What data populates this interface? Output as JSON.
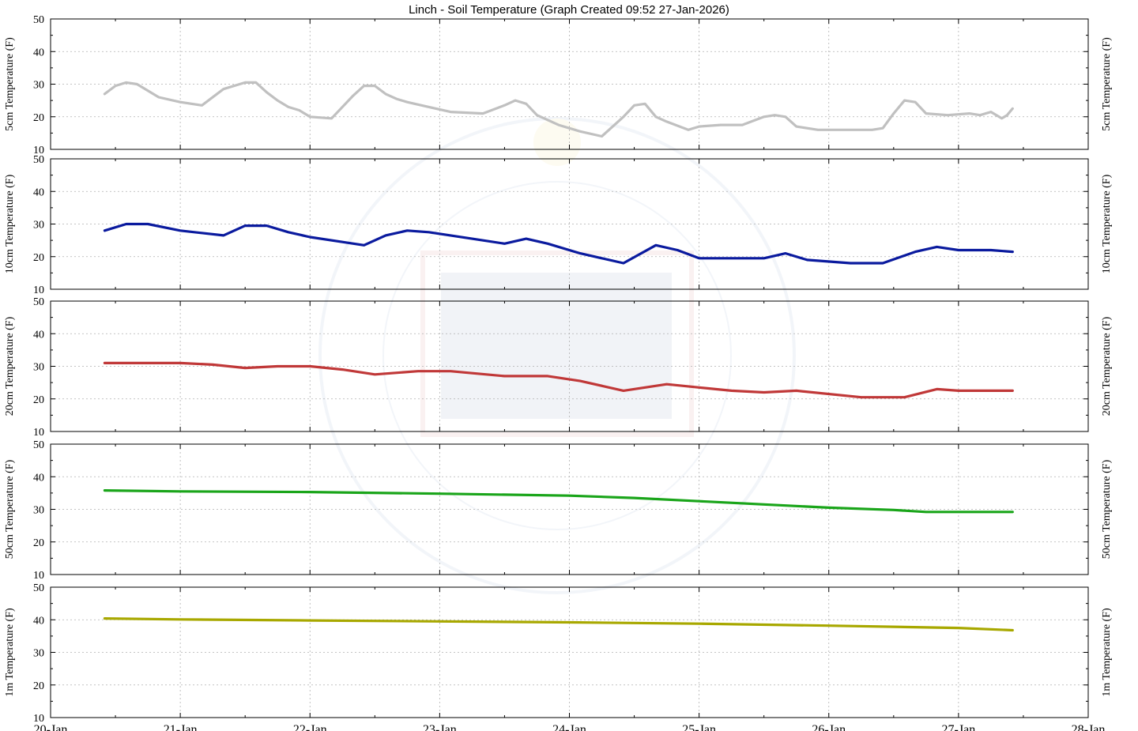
{
  "chart_data": {
    "type": "line",
    "title": "Linch - Soil Temperature (Graph Created 09:52 27-Jan-2026)",
    "x_ticks": [
      "20-Jan",
      "21-Jan",
      "22-Jan",
      "23-Jan",
      "24-Jan",
      "25-Jan",
      "26-Jan",
      "27-Jan",
      "28-Jan"
    ],
    "xlim": [
      "20-Jan",
      "28-Jan"
    ],
    "grid": true,
    "panels": [
      {
        "ylabel": "5cm Temperature (F)",
        "ylim": [
          10,
          50
        ],
        "yticks": [
          10,
          20,
          30,
          40,
          50
        ],
        "color": "#c0c0c0",
        "x": [
          "20-Jan 10:00",
          "20-Jan 12:00",
          "20-Jan 14:00",
          "20-Jan 16:00",
          "20-Jan 18:00",
          "20-Jan 20:00",
          "21-Jan 00:00",
          "21-Jan 04:00",
          "21-Jan 08:00",
          "21-Jan 12:00",
          "21-Jan 14:00",
          "21-Jan 16:00",
          "21-Jan 18:00",
          "21-Jan 20:00",
          "21-Jan 22:00",
          "22-Jan 00:00",
          "22-Jan 04:00",
          "22-Jan 08:00",
          "22-Jan 10:00",
          "22-Jan 12:00",
          "22-Jan 14:00",
          "22-Jan 16:00",
          "22-Jan 18:00",
          "22-Jan 22:00",
          "23-Jan 02:00",
          "23-Jan 08:00",
          "23-Jan 12:00",
          "23-Jan 14:00",
          "23-Jan 16:00",
          "23-Jan 18:00",
          "23-Jan 22:00",
          "24-Jan 02:00",
          "24-Jan 06:00",
          "24-Jan 10:00",
          "24-Jan 12:00",
          "24-Jan 14:00",
          "24-Jan 16:00",
          "24-Jan 18:00",
          "24-Jan 22:00",
          "25-Jan 00:00",
          "25-Jan 04:00",
          "25-Jan 08:00",
          "25-Jan 12:00",
          "25-Jan 14:00",
          "25-Jan 16:00",
          "25-Jan 18:00",
          "25-Jan 22:00",
          "26-Jan 02:00",
          "26-Jan 08:00",
          "26-Jan 10:00",
          "26-Jan 12:00",
          "26-Jan 14:00",
          "26-Jan 16:00",
          "26-Jan 18:00",
          "26-Jan 22:00",
          "27-Jan 02:00",
          "27-Jan 04:00",
          "27-Jan 06:00",
          "27-Jan 08:00",
          "27-Jan 09:00",
          "27-Jan 10:00"
        ],
        "values": [
          27,
          29.5,
          30.5,
          30,
          28,
          26,
          24.5,
          23.5,
          28.5,
          30.5,
          30.5,
          27.5,
          25,
          23,
          22,
          20,
          19.5,
          26.5,
          29.5,
          29.5,
          27,
          25.5,
          24.5,
          23,
          21.5,
          21,
          23.5,
          25,
          24,
          20.5,
          17.5,
          15.5,
          14,
          20,
          23.5,
          24,
          20,
          18.5,
          16,
          17,
          17.5,
          17.5,
          20,
          20.5,
          20,
          17,
          16,
          16,
          16,
          16.5,
          21,
          25,
          24.5,
          21,
          20.5,
          21,
          20.5,
          21.5,
          19.5,
          20.5,
          22.5
        ]
      },
      {
        "ylabel": "10cm Temperature (F)",
        "ylim": [
          10,
          50
        ],
        "yticks": [
          10,
          20,
          30,
          40,
          50
        ],
        "color": "#0a1a9e",
        "x": [
          "20-Jan 10:00",
          "20-Jan 14:00",
          "20-Jan 18:00",
          "21-Jan 00:00",
          "21-Jan 08:00",
          "21-Jan 12:00",
          "21-Jan 16:00",
          "21-Jan 20:00",
          "22-Jan 00:00",
          "22-Jan 06:00",
          "22-Jan 10:00",
          "22-Jan 14:00",
          "22-Jan 18:00",
          "22-Jan 22:00",
          "23-Jan 06:00",
          "23-Jan 12:00",
          "23-Jan 16:00",
          "23-Jan 20:00",
          "24-Jan 02:00",
          "24-Jan 06:00",
          "24-Jan 10:00",
          "24-Jan 16:00",
          "24-Jan 20:00",
          "25-Jan 00:00",
          "25-Jan 12:00",
          "25-Jan 16:00",
          "25-Jan 20:00",
          "26-Jan 04:00",
          "26-Jan 10:00",
          "26-Jan 16:00",
          "26-Jan 20:00",
          "27-Jan 00:00",
          "27-Jan 06:00",
          "27-Jan 10:00"
        ],
        "values": [
          28,
          30,
          30,
          28,
          26.5,
          29.5,
          29.5,
          27.5,
          26,
          24.5,
          23.5,
          26.5,
          28,
          27.5,
          25.5,
          24,
          25.5,
          24,
          21,
          19.5,
          18,
          23.5,
          22,
          19.5,
          19.5,
          21,
          19,
          18,
          18,
          21.5,
          23,
          22,
          22,
          21.5
        ]
      },
      {
        "ylabel": "20cm Temperature (F)",
        "ylim": [
          10,
          50
        ],
        "yticks": [
          10,
          20,
          30,
          40,
          50
        ],
        "color": "#c03838",
        "x": [
          "20-Jan 10:00",
          "21-Jan 00:00",
          "21-Jan 06:00",
          "21-Jan 12:00",
          "21-Jan 18:00",
          "22-Jan 00:00",
          "22-Jan 06:00",
          "22-Jan 12:00",
          "22-Jan 20:00",
          "23-Jan 02:00",
          "23-Jan 12:00",
          "23-Jan 20:00",
          "24-Jan 02:00",
          "24-Jan 10:00",
          "24-Jan 18:00",
          "25-Jan 00:00",
          "25-Jan 06:00",
          "25-Jan 12:00",
          "25-Jan 18:00",
          "26-Jan 06:00",
          "26-Jan 14:00",
          "26-Jan 20:00",
          "27-Jan 00:00",
          "27-Jan 10:00"
        ],
        "values": [
          31,
          31,
          30.5,
          29.5,
          30,
          30,
          29,
          27.5,
          28.5,
          28.5,
          27,
          27,
          25.5,
          22.5,
          24.5,
          23.5,
          22.5,
          22,
          22.5,
          20.5,
          20.5,
          23,
          22.5,
          22.5
        ]
      },
      {
        "ylabel": "50cm Temperature (F)",
        "ylim": [
          10,
          50
        ],
        "yticks": [
          10,
          20,
          30,
          40,
          50
        ],
        "color": "#1aa51a",
        "x": [
          "20-Jan 10:00",
          "21-Jan 00:00",
          "22-Jan 00:00",
          "23-Jan 00:00",
          "24-Jan 00:00",
          "24-Jan 12:00",
          "25-Jan 00:00",
          "25-Jan 12:00",
          "26-Jan 00:00",
          "26-Jan 12:00",
          "26-Jan 18:00",
          "27-Jan 00:00",
          "27-Jan 10:00"
        ],
        "values": [
          35.8,
          35.5,
          35.3,
          34.8,
          34.2,
          33.5,
          32.5,
          31.5,
          30.5,
          29.8,
          29.2,
          29.2,
          29.2
        ]
      },
      {
        "ylabel": "1m Temperature (F)",
        "ylim": [
          10,
          50
        ],
        "yticks": [
          10,
          20,
          30,
          40,
          50
        ],
        "color": "#a8a800",
        "x": [
          "20-Jan 10:00",
          "21-Jan 00:00",
          "22-Jan 00:00",
          "23-Jan 00:00",
          "24-Jan 00:00",
          "25-Jan 00:00",
          "26-Jan 00:00",
          "27-Jan 00:00",
          "27-Jan 10:00"
        ],
        "values": [
          40.4,
          40.1,
          39.8,
          39.5,
          39.2,
          38.8,
          38.2,
          37.5,
          36.8
        ]
      }
    ]
  }
}
